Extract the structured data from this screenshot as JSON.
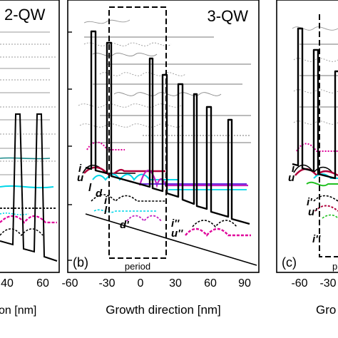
{
  "panels": {
    "a": {
      "title": "2-QW",
      "x_ticks": [
        "40",
        "60"
      ],
      "x_label_fragment": "on [nm]",
      "level_labels": []
    },
    "b": {
      "title": "3-QW",
      "panel_label": "(b)",
      "box_label": "period",
      "x_ticks": [
        "-60",
        "-30",
        "0",
        "30",
        "60",
        "90"
      ],
      "x_label": "Growth direction [nm]",
      "level_labels": [
        {
          "text": "i",
          "color": "#000000"
        },
        {
          "text": "u",
          "color": "#b0003a"
        },
        {
          "text": "l",
          "color": "#00a6c8"
        },
        {
          "text": "d",
          "color": "#7a2ee0"
        },
        {
          "text": "i'",
          "color": "#000000"
        },
        {
          "text": "l'",
          "color": "#00a6c8"
        },
        {
          "text": "d'",
          "color": "#c020c0"
        },
        {
          "text": "i''",
          "color": "#000000"
        },
        {
          "text": "u''",
          "color": "#b0003a"
        }
      ]
    },
    "c": {
      "panel_label": "(c)",
      "box_label_fragment": "p",
      "x_ticks": [
        "-60",
        "-30"
      ],
      "x_label_fragment": "Gro",
      "level_labels": [
        {
          "text": "i",
          "color": "#000000"
        },
        {
          "text": "u",
          "color": "#b0003a"
        },
        {
          "text": "i'",
          "color": "#000000"
        },
        {
          "text": "u'",
          "color": "#b0003a"
        },
        {
          "text": "i''",
          "color": "#000000"
        }
      ]
    }
  },
  "colors": {
    "frame": "#000000",
    "band_edge": "#000000",
    "continuum_dotted": "#888888",
    "continuum_solid": "#666666",
    "teal": "#1a8a8a",
    "cyan": "#00d6e8",
    "magenta": "#e0009a",
    "crimson": "#b0003a",
    "violet": "#7a2ee0",
    "green": "#20c020"
  }
}
